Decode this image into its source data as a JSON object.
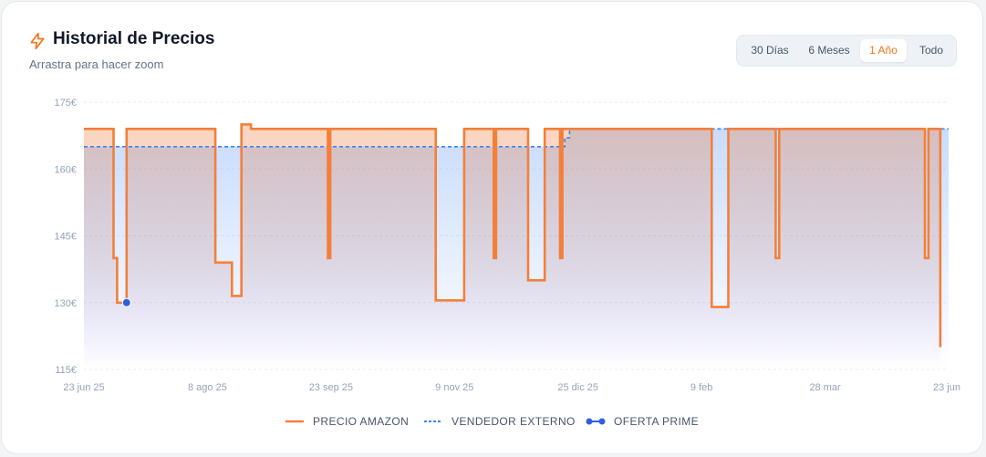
{
  "header": {
    "icon": "lightning-icon",
    "title": "Historial de Precios",
    "subtitle": "Arrastra para hacer zoom"
  },
  "range_selector": {
    "options": [
      "30 Días",
      "6 Meses",
      "1 Año",
      "Todo"
    ],
    "selected": "1 Año"
  },
  "colors": {
    "amazon": "#f47f3a",
    "external": "#3b82f6",
    "prime": "#2f5fe0",
    "accent": "#f97316"
  },
  "chart_data": {
    "type": "line",
    "x_ticks": [
      "23 jun 25",
      "8 ago 25",
      "23 sep 25",
      "9 nov 25",
      "25 dic 25",
      "9 feb",
      "28 mar",
      "23 jun"
    ],
    "y_ticks": [
      "175€",
      "160€",
      "145€",
      "130€",
      "115€"
    ],
    "ylim": [
      115,
      175
    ],
    "xlim": [
      0,
      365
    ],
    "grid": true,
    "legend_position": "bottom",
    "series": [
      {
        "name": "PRECIO AMAZON",
        "style": "step",
        "points": [
          [
            0,
            169
          ],
          [
            12.5,
            169
          ],
          [
            12.5,
            140
          ],
          [
            14,
            140
          ],
          [
            14,
            130
          ],
          [
            18,
            130
          ],
          [
            18,
            169
          ],
          [
            55.5,
            169
          ],
          [
            55.5,
            139
          ],
          [
            62.5,
            139
          ],
          [
            62.5,
            131.5
          ],
          [
            66.5,
            131.5
          ],
          [
            66.5,
            170
          ],
          [
            70.5,
            170
          ],
          [
            70.5,
            169
          ],
          [
            103,
            169
          ],
          [
            103,
            140
          ],
          [
            104,
            140
          ],
          [
            104,
            169
          ],
          [
            148.5,
            169
          ],
          [
            148.5,
            130.5
          ],
          [
            160.5,
            130.5
          ],
          [
            160.5,
            169
          ],
          [
            173,
            169
          ],
          [
            173,
            140
          ],
          [
            174,
            140
          ],
          [
            174,
            169
          ],
          [
            187.5,
            169
          ],
          [
            187.5,
            135
          ],
          [
            194.5,
            135
          ],
          [
            194.5,
            169
          ],
          [
            201,
            169
          ],
          [
            201,
            140
          ],
          [
            202,
            140
          ],
          [
            202,
            169
          ],
          [
            265,
            169
          ],
          [
            265,
            129
          ],
          [
            272,
            129
          ],
          [
            272,
            169
          ],
          [
            292,
            169
          ],
          [
            292,
            140
          ],
          [
            293.5,
            140
          ],
          [
            293.5,
            169
          ],
          [
            355,
            169
          ],
          [
            355,
            140
          ],
          [
            356.5,
            140
          ],
          [
            356.5,
            169
          ],
          [
            361.5,
            169
          ],
          [
            361.5,
            120
          ]
        ]
      },
      {
        "name": "VENDEDOR EXTERNO",
        "style": "dashed-step",
        "points": [
          [
            0,
            165
          ],
          [
            203,
            165
          ],
          [
            203,
            167
          ],
          [
            205,
            167
          ],
          [
            205,
            169
          ],
          [
            365,
            169
          ]
        ]
      },
      {
        "name": "OFERTA PRIME",
        "style": "points",
        "points": [
          [
            18,
            130
          ]
        ]
      }
    ]
  }
}
